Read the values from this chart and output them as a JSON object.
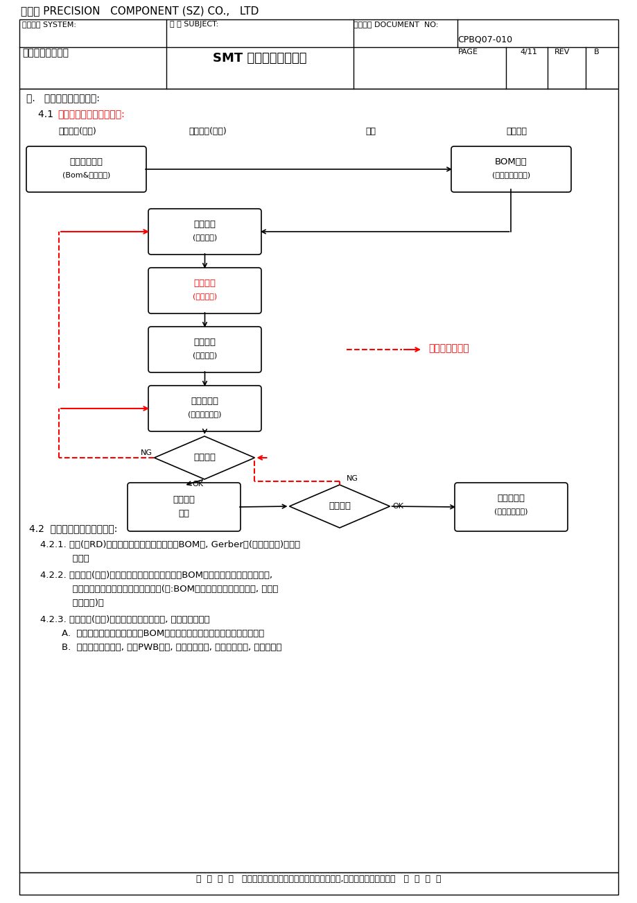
{
  "company_name": "金网通 PRECISION   COMPONENT (SZ) CO.,   LTD",
  "system_label": "系统名称 SYSTEM:",
  "subject_label": "主 题 SUBJECT:",
  "doc_label": "文件编號 DOCUMENT  NO:",
  "doc_no": "CPBQ07-010",
  "system_value": "製程品管作業系統",
  "subject_value": "SMT 貼裝程式管理辦法",
  "page_label": "PAGE",
  "page_value": "4/11",
  "rev_label": "REV",
  "rev_value": "B",
  "section_title": "四.   程式製作及釋放作業:",
  "subsection_41": "4.1  ",
  "subsection_41_red": "程式製作及釋放作業流程:",
  "col1_label": "電子工程(开发)",
  "col2_label": "電子工程(工艺)",
  "col3_label": "品管",
  "col4_label": "資料中心",
  "box1_line1": "工程資料釋放",
  "box1_line2": "(Bom&程式座標)",
  "box2_line1": "BOM發行",
  "box2_line2": "(座標檔同步發行)",
  "box3_line1": "程式製作",
  "box3_line2": "(線外作業)",
  "box4_line1": "實機確認",
  "box4_line2": "(軌道調整)",
  "box5_line1": "程式下載",
  "box5_line2": "(命名修正)",
  "box6_line1": "上料表製作",
  "box6_line2": "(程式同步發行)",
  "diamond1_label": "程式核對",
  "box7_line1": "程式核對",
  "box7_line2": "申請",
  "diamond2_label": "程式核對",
  "box8_line1": "上料表發行",
  "box8_line2": "(程式同步發行)",
  "legend_text": "異常之處置流程",
  "ng_label": "NG",
  "ok_label": "OK",
  "section42": "4.2  程式製作及釋放作業內容:",
  "item421_1": "4.2.1. 客戶(或RD)需於新產品導入或變更時釋放BOM表, Gerber檔(程式座標檔)於電子",
  "item421_2": "           工程。",
  "item422_1": "4.2.2. 電子工程(开发)取得資料後將其轉換為廠內之BOM表及程式座標檔並進行發行,",
  "item422_2": "           以做為後續程式製作及核對之依據。(注:BOM表及程式座標檔同步發行, 備份於",
  "item422_3": "           資料中心)。",
  "item423_0": "4.2.3. 電子工程(工艺)依據需求進行程式製作, 以備生產使用。",
  "item423_a": "    A.  從廠內資料中心下載廠內之BOM表及程式座標檔進行程式製作前之準備。",
  "item423_b": "    B.  確認生產產線配置, 根據PWB資料, 貼裝元件資料, 標準座標資料, 在特定品牌",
  "footer": "＊  ＊  ＊  ＊   本文件之著作權及營業秘密屬于今网通公司,非經公司允許不得翻印   ＊  ＊  ＊  ＊"
}
